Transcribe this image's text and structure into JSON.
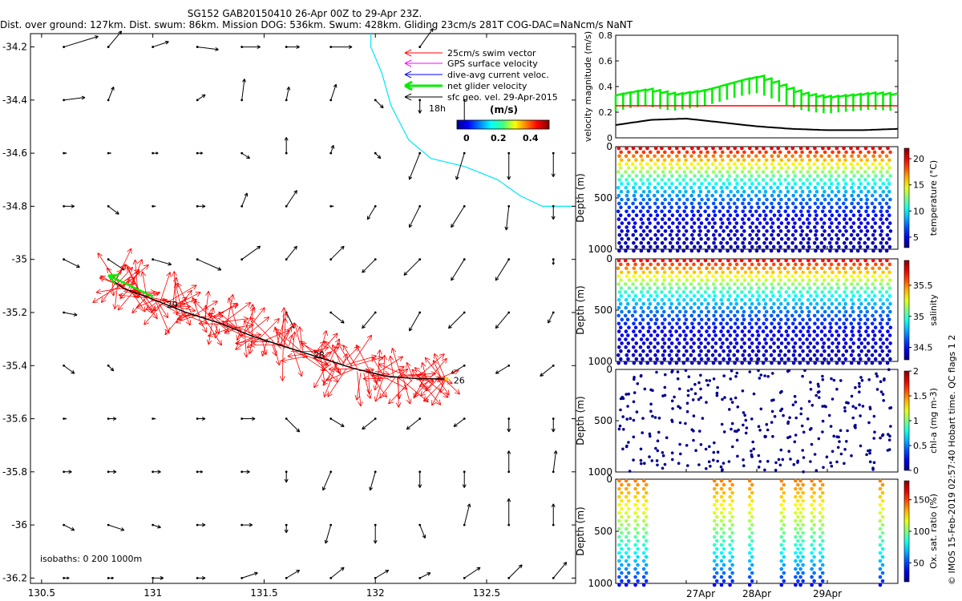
{
  "titles": {
    "line1": "SG152 GAB20150410 26-Apr 00Z to 29-Apr 23Z.",
    "line2": "Dist. over ground: 127km. Dist. swum: 86km. Mission DOG: 536km. Swum: 428km. Gliding 23cm/s 281T COG-DAC=NaNcm/s NaNT"
  },
  "watermark": "© IMOS 15-Feb-2019 02:57:40 Hobart time. QC flags 1  2",
  "colors": {
    "swim": "#ff0000",
    "gps": "#ff00ff",
    "dac": "#0000ff",
    "net": "#00ee00",
    "geo": "#000000",
    "coast": "#00e5ff",
    "track_dot": "#ffcc00"
  },
  "chart_data": [
    {
      "type": "map-quiver",
      "name": "glider-track-map",
      "xlim": [
        130.45,
        132.9
      ],
      "ylim": [
        -36.22,
        -34.15
      ],
      "x_ticks": [
        130.5,
        131,
        131.5,
        132,
        132.5
      ],
      "x_tick_labels": [
        "130.5",
        "131",
        "131.5",
        "132",
        "132.5"
      ],
      "y_ticks": [
        -34.2,
        -34.4,
        -34.6,
        -34.8,
        -35,
        -35.2,
        -35.4,
        -35.6,
        -35.8,
        -36,
        -36.2
      ],
      "y_tick_labels": [
        "-34.2",
        "-34.4",
        "-34.6",
        "-34.8",
        "-35",
        "-35.2",
        "-35.4",
        "-35.6",
        "-35.8",
        "-36",
        "-36.2"
      ],
      "legend": {
        "entries": [
          "25cm/s swim vector",
          "GPS surface velocity",
          "dive-avg current veloc.",
          "net glider velocity",
          "sfc geo. vel. 29-Apr-2015"
        ],
        "time_label": "18h",
        "colorbar_title": "(m/s)",
        "colorbar_ticks": [
          "0",
          "0.2",
          "0.4"
        ],
        "placement": "top-right"
      },
      "isobath_text": "isobaths: 0   200   1000m",
      "day_labels": [
        {
          "text": "26",
          "lon": 132.33,
          "lat": -35.455
        },
        {
          "text": "28",
          "lon": 131.7,
          "lat": -35.36
        },
        {
          "text": "29",
          "lon": 131.04,
          "lat": -35.17
        }
      ],
      "track": [
        [
          132.32,
          -35.45
        ],
        [
          132.2,
          -35.45
        ],
        [
          132.05,
          -35.44
        ],
        [
          131.9,
          -35.41
        ],
        [
          131.75,
          -35.37
        ],
        [
          131.6,
          -35.33
        ],
        [
          131.45,
          -35.29
        ],
        [
          131.3,
          -35.24
        ],
        [
          131.15,
          -35.2
        ],
        [
          131.0,
          -35.15
        ],
        [
          130.87,
          -35.11
        ],
        [
          130.82,
          -35.08
        ]
      ],
      "net_vector": {
        "from": [
          131.0,
          -35.14
        ],
        "to": [
          130.8,
          -35.06
        ]
      },
      "coast": [
        [
          131.98,
          -34.15
        ],
        [
          131.98,
          -34.2
        ],
        [
          132.03,
          -34.3
        ],
        [
          132.07,
          -34.42
        ],
        [
          132.15,
          -34.55
        ],
        [
          132.25,
          -34.62
        ],
        [
          132.4,
          -34.65
        ],
        [
          132.55,
          -34.7
        ],
        [
          132.65,
          -34.76
        ],
        [
          132.75,
          -34.8
        ],
        [
          132.9,
          -34.8
        ]
      ],
      "geo_vectors": [
        [
          130.6,
          -34.2,
          0.13,
          0.04
        ],
        [
          130.8,
          -34.2,
          0.05,
          0.06
        ],
        [
          131.0,
          -34.2,
          0.06,
          0.02
        ],
        [
          131.2,
          -34.2,
          0.08,
          -0.01
        ],
        [
          131.4,
          -34.2,
          0.07,
          0.0
        ],
        [
          131.6,
          -34.2,
          0.05,
          0.0
        ],
        [
          131.8,
          -34.2,
          0.08,
          0.0
        ],
        [
          132.2,
          -34.2,
          0.05,
          0.07
        ],
        [
          130.6,
          -34.4,
          0.08,
          0.01
        ],
        [
          130.8,
          -34.4,
          0.02,
          0.05
        ],
        [
          131.2,
          -34.4,
          0.03,
          0.02
        ],
        [
          131.4,
          -34.4,
          0.01,
          0.08
        ],
        [
          131.6,
          -34.4,
          0.01,
          0.05
        ],
        [
          131.8,
          -34.4,
          0.02,
          0.06
        ],
        [
          132.0,
          -34.4,
          0.03,
          -0.03
        ],
        [
          132.2,
          -34.4,
          0.0,
          -0.05
        ],
        [
          132.4,
          -34.4,
          0.0,
          -0.09
        ],
        [
          130.6,
          -34.6,
          0.01,
          0.0
        ],
        [
          130.8,
          -34.6,
          0.01,
          0.0
        ],
        [
          131.0,
          -34.6,
          0.02,
          0.0
        ],
        [
          131.2,
          -34.6,
          0.02,
          0.0
        ],
        [
          131.4,
          -34.6,
          0.03,
          -0.02
        ],
        [
          131.6,
          -34.6,
          0.0,
          0.06
        ],
        [
          131.8,
          -34.6,
          0.01,
          0.03
        ],
        [
          132.0,
          -34.6,
          0.02,
          -0.02
        ],
        [
          132.2,
          -34.6,
          -0.04,
          -0.1
        ],
        [
          132.4,
          -34.6,
          -0.03,
          -0.1
        ],
        [
          132.6,
          -34.6,
          0.0,
          -0.1
        ],
        [
          132.8,
          -34.6,
          0.0,
          -0.09
        ],
        [
          130.6,
          -34.8,
          0.04,
          0.0
        ],
        [
          130.8,
          -34.8,
          0.04,
          -0.03
        ],
        [
          131.0,
          -34.8,
          0.01,
          0.0
        ],
        [
          131.2,
          -34.8,
          0.03,
          0.0
        ],
        [
          131.4,
          -34.8,
          0.02,
          0.05
        ],
        [
          131.6,
          -34.8,
          0.04,
          0.06
        ],
        [
          131.8,
          -34.8,
          0.01,
          0.0
        ],
        [
          132.0,
          -34.8,
          -0.03,
          -0.05
        ],
        [
          132.2,
          -34.8,
          -0.04,
          -0.08
        ],
        [
          132.4,
          -34.8,
          -0.05,
          -0.08
        ],
        [
          132.6,
          -34.8,
          -0.01,
          -0.09
        ],
        [
          132.8,
          -34.8,
          0.0,
          -0.05
        ],
        [
          130.6,
          -35.0,
          0.06,
          -0.03
        ],
        [
          130.8,
          -35.0,
          0.06,
          -0.04
        ],
        [
          131.0,
          -35.0,
          0.07,
          -0.02
        ],
        [
          131.2,
          -35.0,
          0.09,
          -0.04
        ],
        [
          131.4,
          -35.0,
          0.07,
          0.05
        ],
        [
          131.6,
          -35.0,
          0.04,
          0.05
        ],
        [
          131.8,
          -35.0,
          0.05,
          0.05
        ],
        [
          132.0,
          -35.0,
          -0.05,
          -0.05
        ],
        [
          132.2,
          -35.0,
          -0.06,
          -0.06
        ],
        [
          132.4,
          -35.0,
          -0.05,
          -0.08
        ],
        [
          132.6,
          -35.0,
          -0.05,
          -0.08
        ],
        [
          132.8,
          -35.0,
          0.0,
          -0.02
        ],
        [
          130.6,
          -35.2,
          0.05,
          -0.01
        ],
        [
          131.6,
          -35.2,
          0.03,
          -0.06
        ],
        [
          131.8,
          -35.2,
          0.05,
          -0.04
        ],
        [
          132.0,
          -35.2,
          -0.05,
          -0.06
        ],
        [
          132.2,
          -35.2,
          -0.04,
          -0.07
        ],
        [
          132.4,
          -35.2,
          -0.06,
          -0.06
        ],
        [
          132.6,
          -35.2,
          -0.05,
          -0.06
        ],
        [
          132.8,
          -35.2,
          -0.02,
          -0.04
        ],
        [
          130.6,
          -35.4,
          0.04,
          -0.03
        ],
        [
          130.8,
          -35.4,
          0.02,
          -0.02
        ],
        [
          132.4,
          -35.4,
          -0.05,
          -0.03
        ],
        [
          132.6,
          -35.4,
          -0.05,
          -0.03
        ],
        [
          132.8,
          -35.4,
          -0.05,
          -0.04
        ],
        [
          130.6,
          -35.6,
          0.01,
          0.0
        ],
        [
          130.8,
          -35.6,
          0.03,
          0.0
        ],
        [
          131.0,
          -35.6,
          0.01,
          0.0
        ],
        [
          131.2,
          -35.6,
          0.03,
          0.0
        ],
        [
          131.4,
          -35.6,
          0.05,
          0.0
        ],
        [
          131.6,
          -35.6,
          0.05,
          -0.05
        ],
        [
          131.8,
          -35.6,
          0.05,
          -0.03
        ],
        [
          132.0,
          -35.6,
          -0.05,
          -0.04
        ],
        [
          132.2,
          -35.6,
          -0.05,
          -0.04
        ],
        [
          132.4,
          -35.6,
          -0.04,
          -0.03
        ],
        [
          132.6,
          -35.6,
          0.0,
          -0.05
        ],
        [
          132.8,
          -35.6,
          0.0,
          -0.05
        ],
        [
          130.6,
          -35.8,
          0.03,
          0.0
        ],
        [
          130.8,
          -35.8,
          0.03,
          0.0
        ],
        [
          131.0,
          -35.8,
          0.03,
          0.0
        ],
        [
          131.2,
          -35.8,
          0.02,
          0.0
        ],
        [
          131.4,
          -35.8,
          0.03,
          0.0
        ],
        [
          131.6,
          -35.8,
          0.0,
          -0.04
        ],
        [
          131.8,
          -35.8,
          -0.03,
          -0.07
        ],
        [
          132.0,
          -35.8,
          -0.02,
          -0.07
        ],
        [
          132.2,
          -35.8,
          0.0,
          -0.06
        ],
        [
          132.4,
          -35.8,
          0.0,
          -0.06
        ],
        [
          132.6,
          -35.8,
          0.0,
          0.08
        ],
        [
          132.8,
          -35.8,
          0.01,
          0.08
        ],
        [
          130.6,
          -36.0,
          0.04,
          -0.02
        ],
        [
          130.8,
          -36.0,
          0.06,
          -0.02
        ],
        [
          131.0,
          -36.0,
          0.03,
          -0.01
        ],
        [
          131.2,
          -36.0,
          0.03,
          0.0
        ],
        [
          131.4,
          -36.0,
          0.04,
          0.0
        ],
        [
          131.6,
          -36.0,
          0.0,
          -0.03
        ],
        [
          131.8,
          -36.0,
          -0.02,
          -0.07
        ],
        [
          132.0,
          -36.0,
          0.0,
          -0.07
        ],
        [
          132.2,
          -36.0,
          0.02,
          -0.05
        ],
        [
          132.4,
          -36.0,
          0.02,
          0.08
        ],
        [
          132.6,
          -36.0,
          0.0,
          0.1
        ],
        [
          132.8,
          -36.0,
          0.0,
          0.08
        ],
        [
          130.6,
          -36.2,
          0.02,
          0.0
        ],
        [
          130.8,
          -36.2,
          0.02,
          0.0
        ],
        [
          131.0,
          -36.2,
          0.04,
          0.0
        ],
        [
          131.2,
          -36.2,
          0.03,
          0.0
        ],
        [
          131.4,
          -36.2,
          0.06,
          0.02
        ],
        [
          131.6,
          -36.2,
          0.05,
          0.03
        ],
        [
          131.8,
          -36.2,
          0.05,
          0.04
        ],
        [
          132.0,
          -36.2,
          0.05,
          0.03
        ],
        [
          132.2,
          -36.2,
          0.04,
          0.02
        ],
        [
          132.4,
          -36.2,
          0.06,
          0.04
        ],
        [
          132.6,
          -36.2,
          0.05,
          0.05
        ],
        [
          132.8,
          -36.2,
          0.05,
          0.06
        ]
      ]
    },
    {
      "type": "line",
      "name": "velocity-magnitude",
      "ylabel": "velocity magnitude (m/s)",
      "ylim": [
        0,
        0.8
      ],
      "y_ticks": [
        0,
        0.2,
        0.4,
        0.6,
        0.8
      ],
      "y_tick_labels": [
        "0",
        "0.2",
        "0.4",
        "0.6",
        "0.8"
      ],
      "x_range_days": [
        0,
        4
      ],
      "series": [
        {
          "name": "net glider velocity",
          "color": "#00ee00",
          "x": [
            0,
            0.4,
            0.8,
            1.2,
            1.6,
            1.8,
            2.0,
            2.2,
            2.4,
            2.6,
            2.8,
            3.0,
            3.2,
            3.6,
            4.0
          ],
          "values": [
            0.33,
            0.37,
            0.33,
            0.36,
            0.42,
            0.45,
            0.47,
            0.43,
            0.38,
            0.34,
            0.32,
            0.31,
            0.32,
            0.34,
            0.33
          ]
        },
        {
          "name": "25cm/s swim",
          "color": "#ff0000",
          "x": [
            0,
            4
          ],
          "values": [
            0.25,
            0.25
          ]
        },
        {
          "name": "dive-avg current",
          "color": "#000000",
          "x": [
            0,
            0.5,
            1.0,
            1.5,
            2.0,
            2.5,
            3.0,
            3.5,
            4.0
          ],
          "values": [
            0.1,
            0.14,
            0.15,
            0.12,
            0.09,
            0.07,
            0.06,
            0.06,
            0.07
          ]
        }
      ]
    },
    {
      "type": "scatter",
      "name": "temperature-profile",
      "ylabel": "Depth (m)",
      "ylim": [
        1000,
        0
      ],
      "y_tick_labels": [
        "0",
        "500",
        "1000"
      ],
      "colorbar_label": "temperature (°C)",
      "colorbar_ticks": [
        "5",
        "10",
        "15",
        "20"
      ],
      "clim": [
        3,
        22
      ],
      "profiles": 38,
      "surface_value": 20,
      "deep_value": 4
    },
    {
      "type": "scatter",
      "name": "salinity-profile",
      "ylabel": "Depth (m)",
      "ylim": [
        1000,
        0
      ],
      "y_tick_labels": [
        "0",
        "500",
        "1000"
      ],
      "colorbar_label": "salinity",
      "colorbar_ticks": [
        "34.5",
        "35",
        "35.5"
      ],
      "clim": [
        34.3,
        35.9
      ],
      "profiles": 38,
      "surface_value": 35.7,
      "deep_value": 34.4
    },
    {
      "type": "scatter",
      "name": "chlorophyll-profile",
      "ylabel": "Depth (m)",
      "ylim": [
        1000,
        0
      ],
      "y_tick_labels": [
        "0",
        "500",
        "1000"
      ],
      "colorbar_label": "chl-a (mg m-3)",
      "colorbar_ticks": [
        "0",
        "0.5",
        "1",
        "1.5",
        "2"
      ],
      "clim": [
        0,
        2
      ],
      "profiles": 38
    },
    {
      "type": "scatter",
      "name": "oxygen-profile",
      "ylabel": "Depth (m)",
      "ylim": [
        1000,
        0
      ],
      "y_tick_labels": [
        "0",
        "500",
        "1000"
      ],
      "colorbar_label": "Ox. sat. ratio (%)",
      "colorbar_ticks": [
        "50",
        "100",
        "150"
      ],
      "clim": [
        20,
        180
      ],
      "profile_days": [
        0.05,
        0.15,
        0.28,
        0.4,
        1.4,
        1.5,
        1.62,
        1.9,
        2.35,
        2.55,
        2.62,
        2.78,
        2.9,
        3.75
      ]
    },
    {
      "type": "axis",
      "name": "time-axis",
      "x_tick_labels": [
        "27Apr",
        "28Apr",
        "29Apr"
      ]
    }
  ]
}
